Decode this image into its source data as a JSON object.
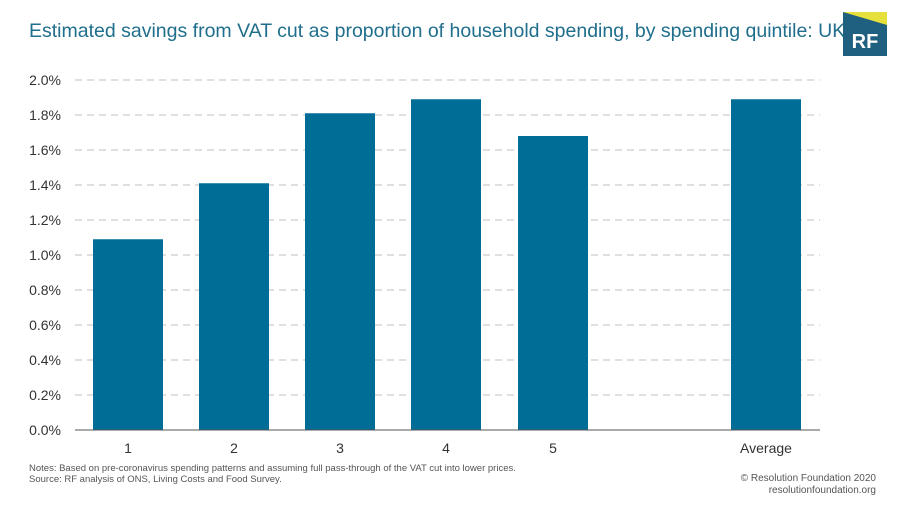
{
  "header": {
    "title": "Estimated savings from VAT cut as proportion of household spending, by spending quintile: UK",
    "logo_text": "RF"
  },
  "chart_data": {
    "type": "bar",
    "title": "Estimated savings from VAT cut as proportion of household spending, by spending quintile: UK",
    "xlabel": "",
    "ylabel": "",
    "categories": [
      "1",
      "2",
      "3",
      "4",
      "5",
      "Average"
    ],
    "values": [
      1.09,
      1.41,
      1.81,
      1.89,
      1.68,
      1.89
    ],
    "ylim": [
      0,
      2.0
    ],
    "yticks": [
      0.0,
      0.2,
      0.4,
      0.6,
      0.8,
      1.0,
      1.2,
      1.4,
      1.6,
      1.8,
      2.0
    ],
    "ytick_labels": [
      "0.0%",
      "0.2%",
      "0.4%",
      "0.6%",
      "0.8%",
      "1.0%",
      "1.2%",
      "1.4%",
      "1.6%",
      "1.8%",
      "2.0%"
    ],
    "grid": true,
    "legend": "none",
    "bar_color": "#006d97"
  },
  "colors": {
    "title": "#1f6e8c",
    "logo_bg": "#1f5f7f",
    "logo_accent": "#e6e03c",
    "grid": "#bfbfbf"
  },
  "footer": {
    "notes": "Notes: Based on pre-coronavirus spending patterns and assuming full pass-through of the VAT cut into lower prices.",
    "source": "Source: RF analysis of ONS, Living Costs and Food Survey.",
    "copyright": "© Resolution Foundation 2020",
    "website": "resolutionfoundation.org"
  }
}
